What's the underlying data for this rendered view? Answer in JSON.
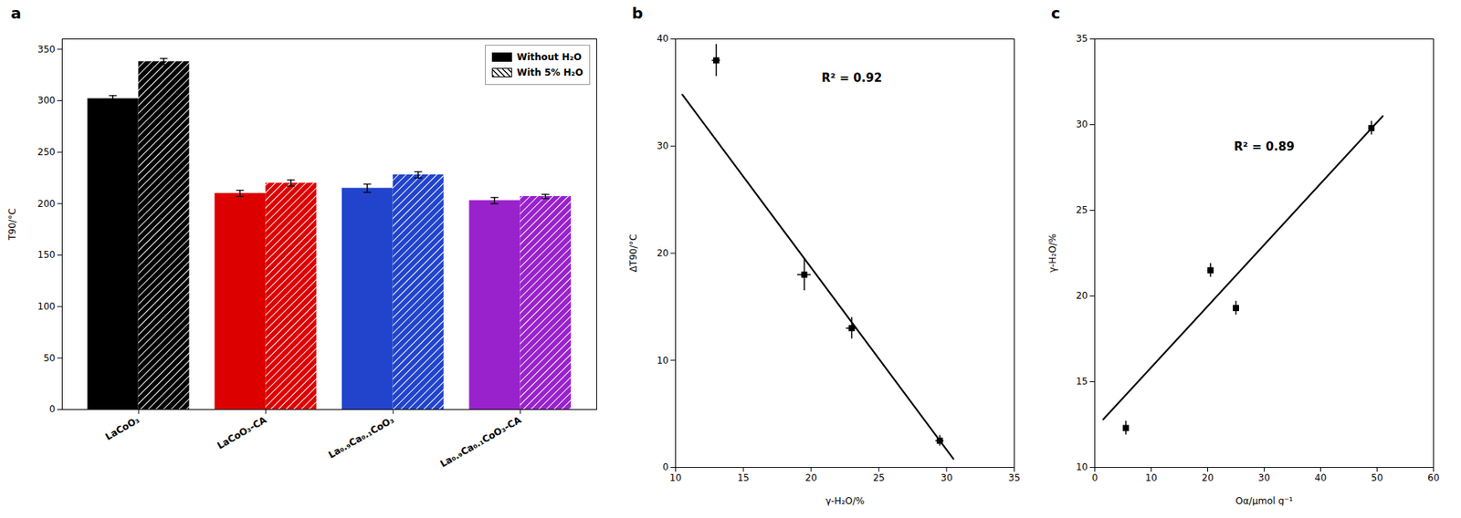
{
  "chart_data": [
    {
      "type": "bar",
      "title": "a",
      "categories": [
        "LaCoO₃",
        "LaCoO₃-CA",
        "La₀.₉Ca₀.₁CoO₃",
        "La₀.₉Ca₀.₁CoO₃-CA"
      ],
      "series": [
        {
          "name": "Without H₂O",
          "values": [
            302,
            210,
            215,
            203
          ],
          "errors": [
            3,
            3,
            4,
            3
          ]
        },
        {
          "name": "With 5% H₂O",
          "values": [
            338,
            220,
            228,
            207
          ],
          "errors": [
            3,
            3,
            3,
            2
          ]
        }
      ],
      "colors": [
        "#000000",
        "#dd0000",
        "#2244cc",
        "#9922cc"
      ],
      "ylabel": "T90/°C",
      "ylim": [
        0,
        360
      ],
      "yticks": [
        0,
        50,
        100,
        150,
        200,
        250,
        300,
        350
      ],
      "legend": "upper right",
      "grid": false
    },
    {
      "type": "scatter",
      "title": "b",
      "x": [
        13.0,
        19.5,
        23.0,
        29.5
      ],
      "values": [
        38.0,
        18.0,
        13.0,
        2.5
      ],
      "xerr": [
        0.3,
        0.5,
        0.4,
        0.3
      ],
      "yerr": [
        1.5,
        1.5,
        1.0,
        0.5
      ],
      "marker": "square",
      "fit_line": {
        "x": [
          10.5,
          30.5
        ],
        "values": [
          34.8,
          0.8
        ]
      },
      "xlabel": "γ-H₂O/%",
      "ylabel": "ΔT90/°C",
      "xlim": [
        10,
        35
      ],
      "xticks": [
        10,
        15,
        20,
        25,
        30,
        35
      ],
      "ylim": [
        0,
        40
      ],
      "yticks": [
        0,
        10,
        20,
        30,
        40
      ],
      "annotations": [
        {
          "text": "R² = 0.92",
          "x": 23,
          "y": 36
        }
      ],
      "grid": false
    },
    {
      "type": "scatter",
      "title": "c",
      "x": [
        5.5,
        20.5,
        25.0,
        49.0
      ],
      "values": [
        12.3,
        21.5,
        19.3,
        29.8
      ],
      "xerr": [
        0.3,
        0.5,
        0.5,
        0.5
      ],
      "yerr": [
        0.4,
        0.4,
        0.4,
        0.4
      ],
      "marker": "square",
      "fit_line": {
        "x": [
          1.5,
          51.0
        ],
        "values": [
          12.8,
          30.5
        ]
      },
      "xlabel": "Oα/μmol g⁻¹",
      "ylabel": "γ-H₂O/%",
      "xlim": [
        0,
        60
      ],
      "xticks": [
        0,
        10,
        20,
        30,
        40,
        50,
        60
      ],
      "ylim": [
        10,
        35
      ],
      "yticks": [
        10,
        15,
        20,
        25,
        30,
        35
      ],
      "annotations": [
        {
          "text": "R² = 0.89",
          "x": 30,
          "y": 28.5
        }
      ],
      "grid": false
    }
  ]
}
